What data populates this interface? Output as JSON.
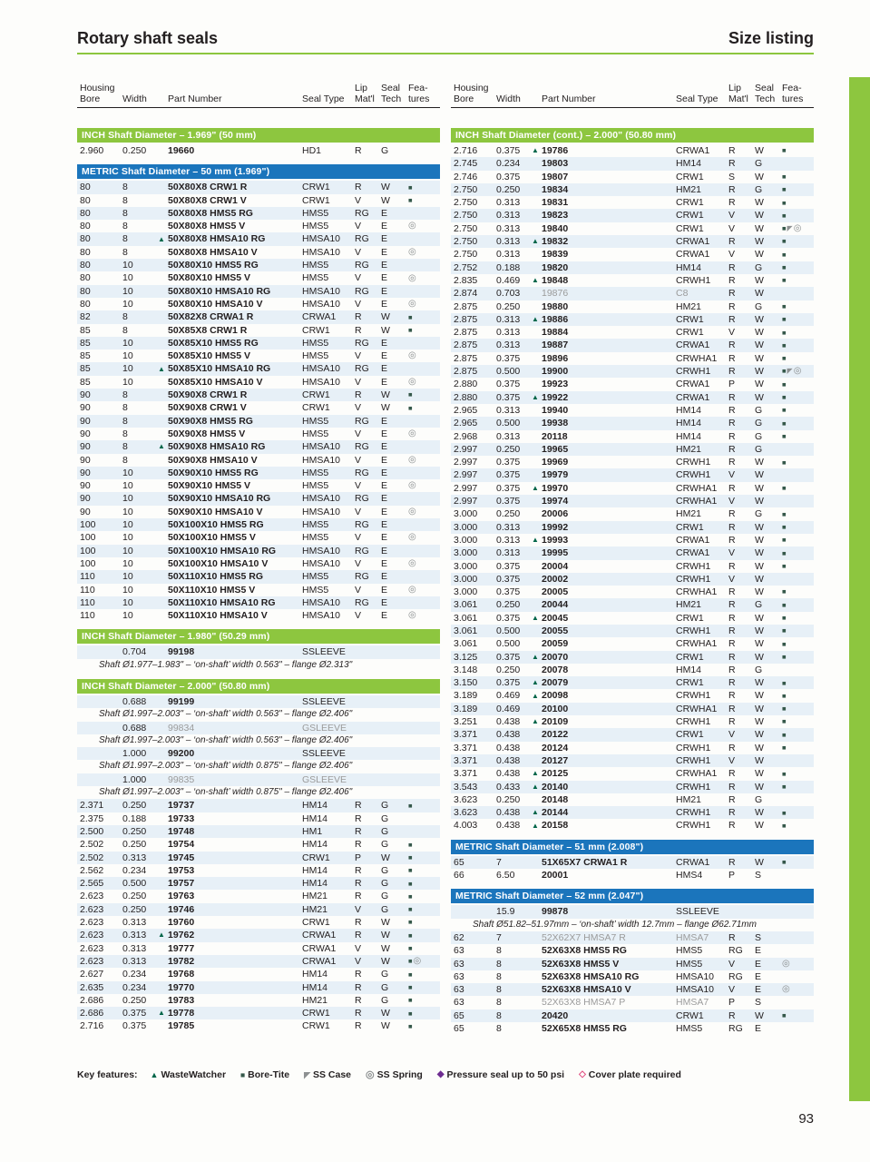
{
  "page": {
    "title_left": "Rotary shaft seals",
    "title_right": "Size listing",
    "page_number": "93",
    "accent_green": "#8dc63f",
    "accent_blue": "#1b75bc"
  },
  "table_headers": {
    "housing_bore": "Housing\nBore",
    "width": "Width",
    "part_number": "Part Number",
    "seal_type": "Seal Type",
    "lip_matl": "Lip\nMat'l",
    "seal_tech": "Seal\nTech",
    "features": "Fea-\ntures"
  },
  "row_format": [
    "housing_bore",
    "width",
    "part_number",
    "seal_type",
    "lip_matl",
    "seal_tech",
    "flags (w=WasteWatcher, b=Bore-Tite, c=SS Case, s=SS Spring, p=Pressure, d=Cover plate, m=muted)",
    "note (optional)"
  ],
  "left_sections": [
    {
      "style": "green",
      "title": "INCH Shaft Diameter  –  1.969\" (50 mm)",
      "rows": [
        [
          "2.960",
          "0.250",
          "19660",
          "HD1",
          "R",
          "G",
          ""
        ]
      ]
    },
    {
      "style": "blue",
      "title": "METRIC Shaft Diameter  –  50 mm  (1.969\")",
      "rows": [
        [
          "80",
          "8",
          "50X80X8 CRW1 R",
          "CRW1",
          "R",
          "W",
          "b"
        ],
        [
          "80",
          "8",
          "50X80X8 CRW1 V",
          "CRW1",
          "V",
          "W",
          "b"
        ],
        [
          "80",
          "8",
          "50X80X8 HMS5 RG",
          "HMS5",
          "RG",
          "E",
          ""
        ],
        [
          "80",
          "8",
          "50X80X8 HMS5 V",
          "HMS5",
          "V",
          "E",
          "s"
        ],
        [
          "80",
          "8",
          "50X80X8 HMSA10 RG",
          "HMSA10",
          "RG",
          "E",
          "w"
        ],
        [
          "80",
          "8",
          "50X80X8 HMSA10 V",
          "HMSA10",
          "V",
          "E",
          "s"
        ],
        [
          "80",
          "10",
          "50X80X10 HMS5 RG",
          "HMS5",
          "RG",
          "E",
          ""
        ],
        [
          "80",
          "10",
          "50X80X10 HMS5 V",
          "HMS5",
          "V",
          "E",
          "s"
        ],
        [
          "80",
          "10",
          "50X80X10 HMSA10 RG",
          "HMSA10",
          "RG",
          "E",
          ""
        ],
        [
          "80",
          "10",
          "50X80X10 HMSA10 V",
          "HMSA10",
          "V",
          "E",
          "s"
        ],
        [
          "82",
          "8",
          "50X82X8 CRWA1 R",
          "CRWA1",
          "R",
          "W",
          "b"
        ],
        [
          "85",
          "8",
          "50X85X8 CRW1 R",
          "CRW1",
          "R",
          "W",
          "b"
        ],
        [
          "85",
          "10",
          "50X85X10 HMS5 RG",
          "HMS5",
          "RG",
          "E",
          ""
        ],
        [
          "85",
          "10",
          "50X85X10 HMS5 V",
          "HMS5",
          "V",
          "E",
          "s"
        ],
        [
          "85",
          "10",
          "50X85X10 HMSA10 RG",
          "HMSA10",
          "RG",
          "E",
          "w"
        ],
        [
          "85",
          "10",
          "50X85X10 HMSA10 V",
          "HMSA10",
          "V",
          "E",
          "s"
        ],
        [
          "90",
          "8",
          "50X90X8 CRW1 R",
          "CRW1",
          "R",
          "W",
          "b"
        ],
        [
          "90",
          "8",
          "50X90X8 CRW1 V",
          "CRW1",
          "V",
          "W",
          "b"
        ],
        [
          "90",
          "8",
          "50X90X8 HMS5 RG",
          "HMS5",
          "RG",
          "E",
          ""
        ],
        [
          "90",
          "8",
          "50X90X8 HMS5 V",
          "HMS5",
          "V",
          "E",
          "s"
        ],
        [
          "90",
          "8",
          "50X90X8 HMSA10 RG",
          "HMSA10",
          "RG",
          "E",
          "w"
        ],
        [
          "90",
          "8",
          "50X90X8 HMSA10 V",
          "HMSA10",
          "V",
          "E",
          "s"
        ],
        [
          "90",
          "10",
          "50X90X10 HMS5 RG",
          "HMS5",
          "RG",
          "E",
          ""
        ],
        [
          "90",
          "10",
          "50X90X10 HMS5 V",
          "HMS5",
          "V",
          "E",
          "s"
        ],
        [
          "90",
          "10",
          "50X90X10 HMSA10 RG",
          "HMSA10",
          "RG",
          "E",
          ""
        ],
        [
          "90",
          "10",
          "50X90X10 HMSA10 V",
          "HMSA10",
          "V",
          "E",
          "s"
        ],
        [
          "100",
          "10",
          "50X100X10 HMS5 RG",
          "HMS5",
          "RG",
          "E",
          ""
        ],
        [
          "100",
          "10",
          "50X100X10 HMS5 V",
          "HMS5",
          "V",
          "E",
          "s"
        ],
        [
          "100",
          "10",
          "50X100X10 HMSA10 RG",
          "HMSA10",
          "RG",
          "E",
          ""
        ],
        [
          "100",
          "10",
          "50X100X10 HMSA10 V",
          "HMSA10",
          "V",
          "E",
          "s"
        ],
        [
          "110",
          "10",
          "50X110X10 HMS5 RG",
          "HMS5",
          "RG",
          "E",
          ""
        ],
        [
          "110",
          "10",
          "50X110X10 HMS5 V",
          "HMS5",
          "V",
          "E",
          "s"
        ],
        [
          "110",
          "10",
          "50X110X10 HMSA10 RG",
          "HMSA10",
          "RG",
          "E",
          ""
        ],
        [
          "110",
          "10",
          "50X110X10 HMSA10 V",
          "HMSA10",
          "V",
          "E",
          "s"
        ]
      ]
    },
    {
      "style": "green",
      "title": "INCH Shaft Diameter  –  1.980\" (50.29 mm)",
      "rows": [
        [
          "",
          "0.704",
          "99198",
          "SSLEEVE",
          "",
          "",
          "",
          "Shaft Ø1.977–1.983\" – ‘on-shaft’ width 0.563\" – flange Ø2.313\""
        ]
      ]
    },
    {
      "style": "green",
      "title": "INCH Shaft Diameter  –  2.000\" (50.80 mm)",
      "rows": [
        [
          "",
          "0.688",
          "99199",
          "SSLEEVE",
          "",
          "",
          "",
          "Shaft Ø1.997–2.003\" – ‘on-shaft’ width 0.563\" – flange Ø2.406\""
        ],
        [
          "",
          "0.688",
          "99834",
          "GSLEEVE",
          "",
          "",
          "m",
          "Shaft Ø1.997–2.003\" – ‘on-shaft’ width 0.563\" – flange Ø2.406\""
        ],
        [
          "",
          "1.000",
          "99200",
          "SSLEEVE",
          "",
          "",
          "",
          "Shaft Ø1.997–2.003\" – ‘on-shaft’ width 0.875\" – flange Ø2.406\""
        ],
        [
          "",
          "1.000",
          "99835",
          "GSLEEVE",
          "",
          "",
          "m",
          "Shaft Ø1.997–2.003\" – ‘on-shaft’ width 0.875\" – flange Ø2.406\""
        ],
        [
          "2.371",
          "0.250",
          "19737",
          "HM14",
          "R",
          "G",
          "b"
        ],
        [
          "2.375",
          "0.188",
          "19733",
          "HM14",
          "R",
          "G",
          ""
        ],
        [
          "2.500",
          "0.250",
          "19748",
          "HM1",
          "R",
          "G",
          ""
        ],
        [
          "2.502",
          "0.250",
          "19754",
          "HM14",
          "R",
          "G",
          "b"
        ],
        [
          "2.502",
          "0.313",
          "19745",
          "CRW1",
          "P",
          "W",
          "b"
        ],
        [
          "2.562",
          "0.234",
          "19753",
          "HM14",
          "R",
          "G",
          "b"
        ],
        [
          "2.565",
          "0.500",
          "19757",
          "HM14",
          "R",
          "G",
          "b"
        ],
        [
          "2.623",
          "0.250",
          "19763",
          "HM21",
          "R",
          "G",
          "b"
        ],
        [
          "2.623",
          "0.250",
          "19746",
          "HM21",
          "V",
          "G",
          "b"
        ],
        [
          "2.623",
          "0.313",
          "19760",
          "CRW1",
          "R",
          "W",
          "b"
        ],
        [
          "2.623",
          "0.313",
          "19762",
          "CRWA1",
          "R",
          "W",
          "wb"
        ],
        [
          "2.623",
          "0.313",
          "19777",
          "CRWA1",
          "V",
          "W",
          "b"
        ],
        [
          "2.623",
          "0.313",
          "19782",
          "CRWA1",
          "V",
          "W",
          "bs"
        ],
        [
          "2.627",
          "0.234",
          "19768",
          "HM14",
          "R",
          "G",
          "b"
        ],
        [
          "2.635",
          "0.234",
          "19770",
          "HM14",
          "R",
          "G",
          "b"
        ],
        [
          "2.686",
          "0.250",
          "19783",
          "HM21",
          "R",
          "G",
          "b"
        ],
        [
          "2.686",
          "0.375",
          "19778",
          "CRW1",
          "R",
          "W",
          "wb"
        ],
        [
          "2.716",
          "0.375",
          "19785",
          "CRW1",
          "R",
          "W",
          "b"
        ]
      ]
    }
  ],
  "right_sections": [
    {
      "style": "green",
      "title": "INCH Shaft Diameter (cont.)  –  2.000\" (50.80 mm)",
      "rows": [
        [
          "2.716",
          "0.375",
          "19786",
          "CRWA1",
          "R",
          "W",
          "wb"
        ],
        [
          "2.745",
          "0.234",
          "19803",
          "HM14",
          "R",
          "G",
          ""
        ],
        [
          "2.746",
          "0.375",
          "19807",
          "CRW1",
          "S",
          "W",
          "b"
        ],
        [
          "2.750",
          "0.250",
          "19834",
          "HM21",
          "R",
          "G",
          "b"
        ],
        [
          "2.750",
          "0.313",
          "19831",
          "CRW1",
          "R",
          "W",
          "b"
        ],
        [
          "2.750",
          "0.313",
          "19823",
          "CRW1",
          "V",
          "W",
          "b"
        ],
        [
          "2.750",
          "0.313",
          "19840",
          "CRW1",
          "V",
          "W",
          "bcs"
        ],
        [
          "2.750",
          "0.313",
          "19832",
          "CRWA1",
          "R",
          "W",
          "wb"
        ],
        [
          "2.750",
          "0.313",
          "19839",
          "CRWA1",
          "V",
          "W",
          "b"
        ],
        [
          "2.752",
          "0.188",
          "19820",
          "HM14",
          "R",
          "G",
          "b"
        ],
        [
          "2.835",
          "0.469",
          "19848",
          "CRWH1",
          "R",
          "W",
          "wb"
        ],
        [
          "2.874",
          "0.703",
          "19876",
          "C8",
          "R",
          "W",
          "m"
        ],
        [
          "2.875",
          "0.250",
          "19880",
          "HM21",
          "R",
          "G",
          "b"
        ],
        [
          "2.875",
          "0.313",
          "19886",
          "CRW1",
          "R",
          "W",
          "wb"
        ],
        [
          "2.875",
          "0.313",
          "19884",
          "CRW1",
          "V",
          "W",
          "b"
        ],
        [
          "2.875",
          "0.313",
          "19887",
          "CRWA1",
          "R",
          "W",
          "b"
        ],
        [
          "2.875",
          "0.375",
          "19896",
          "CRWHA1",
          "R",
          "W",
          "b"
        ],
        [
          "2.875",
          "0.500",
          "19900",
          "CRWH1",
          "R",
          "W",
          "bcs"
        ],
        [
          "2.880",
          "0.375",
          "19923",
          "CRWA1",
          "P",
          "W",
          "b"
        ],
        [
          "2.880",
          "0.375",
          "19922",
          "CRWA1",
          "R",
          "W",
          "wb"
        ],
        [
          "2.965",
          "0.313",
          "19940",
          "HM14",
          "R",
          "G",
          "b"
        ],
        [
          "2.965",
          "0.500",
          "19938",
          "HM14",
          "R",
          "G",
          "b"
        ],
        [
          "2.968",
          "0.313",
          "20118",
          "HM14",
          "R",
          "G",
          "b"
        ],
        [
          "2.997",
          "0.250",
          "19965",
          "HM21",
          "R",
          "G",
          ""
        ],
        [
          "2.997",
          "0.375",
          "19969",
          "CRWH1",
          "R",
          "W",
          "b"
        ],
        [
          "2.997",
          "0.375",
          "19979",
          "CRWH1",
          "V",
          "W",
          ""
        ],
        [
          "2.997",
          "0.375",
          "19970",
          "CRWHA1",
          "R",
          "W",
          "wb"
        ],
        [
          "2.997",
          "0.375",
          "19974",
          "CRWHA1",
          "V",
          "W",
          ""
        ],
        [
          "3.000",
          "0.250",
          "20006",
          "HM21",
          "R",
          "G",
          "b"
        ],
        [
          "3.000",
          "0.313",
          "19992",
          "CRW1",
          "R",
          "W",
          "b"
        ],
        [
          "3.000",
          "0.313",
          "19993",
          "CRWA1",
          "R",
          "W",
          "wb"
        ],
        [
          "3.000",
          "0.313",
          "19995",
          "CRWA1",
          "V",
          "W",
          "b"
        ],
        [
          "3.000",
          "0.375",
          "20004",
          "CRWH1",
          "R",
          "W",
          "b"
        ],
        [
          "3.000",
          "0.375",
          "20002",
          "CRWH1",
          "V",
          "W",
          ""
        ],
        [
          "3.000",
          "0.375",
          "20005",
          "CRWHA1",
          "R",
          "W",
          "b"
        ],
        [
          "3.061",
          "0.250",
          "20044",
          "HM21",
          "R",
          "G",
          "b"
        ],
        [
          "3.061",
          "0.375",
          "20045",
          "CRW1",
          "R",
          "W",
          "wb"
        ],
        [
          "3.061",
          "0.500",
          "20055",
          "CRWH1",
          "R",
          "W",
          "b"
        ],
        [
          "3.061",
          "0.500",
          "20059",
          "CRWHA1",
          "R",
          "W",
          "b"
        ],
        [
          "3.125",
          "0.375",
          "20070",
          "CRW1",
          "R",
          "W",
          "wb"
        ],
        [
          "3.148",
          "0.250",
          "20078",
          "HM14",
          "R",
          "G",
          ""
        ],
        [
          "3.150",
          "0.375",
          "20079",
          "CRW1",
          "R",
          "W",
          "wb"
        ],
        [
          "3.189",
          "0.469",
          "20098",
          "CRWH1",
          "R",
          "W",
          "wb"
        ],
        [
          "3.189",
          "0.469",
          "20100",
          "CRWHA1",
          "R",
          "W",
          "b"
        ],
        [
          "3.251",
          "0.438",
          "20109",
          "CRWH1",
          "R",
          "W",
          "wb"
        ],
        [
          "3.371",
          "0.438",
          "20122",
          "CRW1",
          "V",
          "W",
          "b"
        ],
        [
          "3.371",
          "0.438",
          "20124",
          "CRWH1",
          "R",
          "W",
          "b"
        ],
        [
          "3.371",
          "0.438",
          "20127",
          "CRWH1",
          "V",
          "W",
          ""
        ],
        [
          "3.371",
          "0.438",
          "20125",
          "CRWHA1",
          "R",
          "W",
          "wb"
        ],
        [
          "3.543",
          "0.433",
          "20140",
          "CRWH1",
          "R",
          "W",
          "wb"
        ],
        [
          "3.623",
          "0.250",
          "20148",
          "HM21",
          "R",
          "G",
          ""
        ],
        [
          "3.623",
          "0.438",
          "20144",
          "CRWH1",
          "R",
          "W",
          "wb"
        ],
        [
          "4.003",
          "0.438",
          "20158",
          "CRWH1",
          "R",
          "W",
          "wb"
        ]
      ]
    },
    {
      "style": "blue",
      "title": "METRIC Shaft Diameter  –  51 mm  (2.008\")",
      "rows": [
        [
          "65",
          "7",
          "51X65X7 CRWA1 R",
          "CRWA1",
          "R",
          "W",
          "b"
        ],
        [
          "66",
          "6.50",
          "20001",
          "HMS4",
          "P",
          "S",
          ""
        ]
      ]
    },
    {
      "style": "blue",
      "title": "METRIC Shaft Diameter  –  52 mm  (2.047\")",
      "rows": [
        [
          "",
          "15.9",
          "99878",
          "SSLEEVE",
          "",
          "",
          "",
          "Shaft Ø51.82–51.97mm – ‘on-shaft’ width 12.7mm – flange Ø62.71mm"
        ],
        [
          "62",
          "7",
          "52X62X7 HMSA7 R",
          "HMSA7",
          "R",
          "S",
          "m"
        ],
        [
          "63",
          "8",
          "52X63X8 HMS5 RG",
          "HMS5",
          "RG",
          "E",
          ""
        ],
        [
          "63",
          "8",
          "52X63X8 HMS5 V",
          "HMS5",
          "V",
          "E",
          "s"
        ],
        [
          "63",
          "8",
          "52X63X8 HMSA10 RG",
          "HMSA10",
          "RG",
          "E",
          ""
        ],
        [
          "63",
          "8",
          "52X63X8 HMSA10 V",
          "HMSA10",
          "V",
          "E",
          "s"
        ],
        [
          "63",
          "8",
          "52X63X8 HMSA7 P",
          "HMSA7",
          "P",
          "S",
          "m"
        ],
        [
          "65",
          "8",
          "20420",
          "CRW1",
          "R",
          "W",
          "b"
        ],
        [
          "65",
          "8",
          "52X65X8 HMS5 RG",
          "HMS5",
          "RG",
          "E",
          ""
        ]
      ]
    }
  ],
  "legend": {
    "label": "Key features:",
    "items": [
      {
        "flag": "w",
        "text": "WasteWatcher"
      },
      {
        "flag": "b",
        "text": "Bore-Tite"
      },
      {
        "flag": "c",
        "text": "SS Case"
      },
      {
        "flag": "s",
        "text": "SS Spring"
      },
      {
        "flag": "p",
        "text": "Pressure seal up to 50 psi"
      },
      {
        "flag": "d",
        "text": "Cover plate required"
      }
    ]
  }
}
